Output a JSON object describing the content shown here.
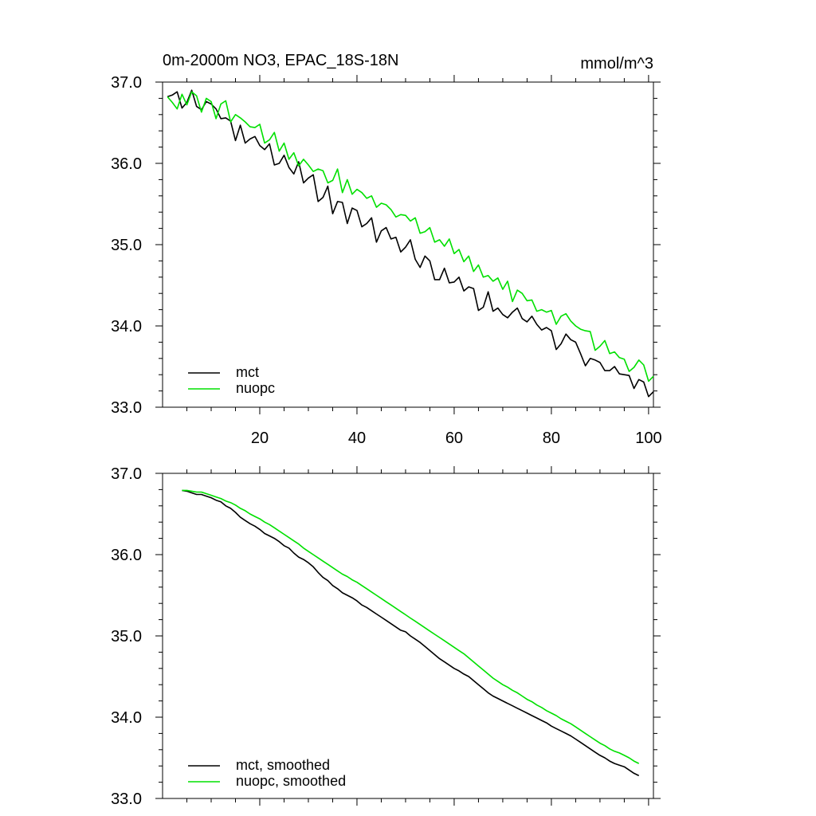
{
  "chart_data": [
    {
      "type": "line",
      "title": "0m-2000m NO3, EPAC_18S-18N",
      "units": "mmol/m^3",
      "xlabel": "",
      "ylabel": "",
      "xlim": [
        0,
        101
      ],
      "ylim": [
        33.0,
        37.0
      ],
      "xticks": [
        20,
        40,
        60,
        80,
        100
      ],
      "xtick_labels": [
        "20",
        "40",
        "60",
        "80",
        "100"
      ],
      "yticks": [
        33.0,
        34.0,
        35.0,
        36.0,
        37.0
      ],
      "ytick_labels": [
        "33.0",
        "34.0",
        "35.0",
        "36.0",
        "37.0"
      ],
      "grid": false,
      "legend_position": "bottom-left",
      "x": [
        1,
        2,
        3,
        4,
        5,
        6,
        7,
        8,
        9,
        10,
        11,
        12,
        13,
        14,
        15,
        16,
        17,
        18,
        19,
        20,
        21,
        22,
        23,
        24,
        25,
        26,
        27,
        28,
        29,
        30,
        31,
        32,
        33,
        34,
        35,
        36,
        37,
        38,
        39,
        40,
        41,
        42,
        43,
        44,
        45,
        46,
        47,
        48,
        49,
        50,
        51,
        52,
        53,
        54,
        55,
        56,
        57,
        58,
        59,
        60,
        61,
        62,
        63,
        64,
        65,
        66,
        67,
        68,
        69,
        70,
        71,
        72,
        73,
        74,
        75,
        76,
        77,
        78,
        79,
        80,
        81,
        82,
        83,
        84,
        85,
        86,
        87,
        88,
        89,
        90,
        91,
        92,
        93,
        94,
        95,
        96,
        97,
        98,
        99,
        100,
        101
      ],
      "series": [
        {
          "name": "mct",
          "color": "#000000",
          "values": [
            36.82,
            36.84,
            36.88,
            36.68,
            36.75,
            36.9,
            36.7,
            36.66,
            36.76,
            36.73,
            36.67,
            36.55,
            36.56,
            36.52,
            36.28,
            36.47,
            36.25,
            36.3,
            36.33,
            36.22,
            36.17,
            36.24,
            35.98,
            36.0,
            36.1,
            35.95,
            35.87,
            36.02,
            35.76,
            35.82,
            35.86,
            35.53,
            35.58,
            35.72,
            35.38,
            35.53,
            35.52,
            35.26,
            35.45,
            35.42,
            35.22,
            35.26,
            35.33,
            35.03,
            35.17,
            35.21,
            35.07,
            35.09,
            34.91,
            34.97,
            35.06,
            34.82,
            34.72,
            34.86,
            34.8,
            34.57,
            34.57,
            34.71,
            34.53,
            34.54,
            34.6,
            34.43,
            34.48,
            34.46,
            34.19,
            34.23,
            34.42,
            34.18,
            34.22,
            34.14,
            34.1,
            34.17,
            34.22,
            34.09,
            34.05,
            34.12,
            34.02,
            33.95,
            33.98,
            33.94,
            33.71,
            33.78,
            33.9,
            33.83,
            33.8,
            33.66,
            33.51,
            33.6,
            33.58,
            33.55,
            33.45,
            33.45,
            33.5,
            33.41,
            33.4,
            33.39,
            33.23,
            33.34,
            33.31,
            33.13,
            33.19
          ]
        },
        {
          "name": "nuopc",
          "color": "#00e000",
          "values": [
            36.82,
            36.75,
            36.67,
            36.85,
            36.72,
            36.88,
            36.83,
            36.63,
            36.8,
            36.76,
            36.55,
            36.73,
            36.77,
            36.51,
            36.6,
            36.56,
            36.51,
            36.45,
            36.44,
            36.48,
            36.25,
            36.29,
            36.38,
            36.15,
            36.25,
            36.05,
            36.13,
            35.97,
            36.05,
            35.98,
            35.9,
            35.93,
            35.91,
            35.76,
            35.79,
            35.93,
            35.64,
            35.8,
            35.62,
            35.68,
            35.64,
            35.57,
            35.6,
            35.46,
            35.51,
            35.49,
            35.43,
            35.34,
            35.37,
            35.36,
            35.29,
            35.33,
            35.14,
            35.16,
            35.21,
            35.03,
            35.06,
            34.98,
            35.07,
            34.89,
            34.94,
            34.79,
            34.86,
            34.67,
            34.75,
            34.6,
            34.62,
            34.55,
            34.59,
            34.45,
            34.55,
            34.3,
            34.44,
            34.4,
            34.31,
            34.32,
            34.18,
            34.2,
            34.17,
            34.19,
            34.02,
            34.12,
            34.15,
            34.06,
            34.0,
            33.96,
            33.94,
            33.93,
            33.7,
            33.75,
            33.82,
            33.66,
            33.68,
            33.61,
            33.59,
            33.44,
            33.49,
            33.58,
            33.52,
            33.32,
            33.38
          ]
        }
      ]
    },
    {
      "type": "line",
      "title": "",
      "xlabel": "",
      "ylabel": "",
      "xlim": [
        0,
        101
      ],
      "ylim": [
        33.0,
        37.0
      ],
      "xticks": [
        20,
        40,
        60,
        80,
        100
      ],
      "yticks": [
        33.0,
        34.0,
        35.0,
        36.0,
        37.0
      ],
      "ytick_labels": [
        "33.0",
        "34.0",
        "35.0",
        "36.0",
        "37.0"
      ],
      "grid": false,
      "legend_position": "bottom-left",
      "x": [
        4,
        5,
        6,
        7,
        8,
        9,
        10,
        11,
        12,
        13,
        14,
        15,
        16,
        17,
        18,
        19,
        20,
        21,
        22,
        23,
        24,
        25,
        26,
        27,
        28,
        29,
        30,
        31,
        32,
        33,
        34,
        35,
        36,
        37,
        38,
        39,
        40,
        41,
        42,
        43,
        44,
        45,
        46,
        47,
        48,
        49,
        50,
        51,
        52,
        53,
        54,
        55,
        56,
        57,
        58,
        59,
        60,
        61,
        62,
        63,
        64,
        65,
        66,
        67,
        68,
        69,
        70,
        71,
        72,
        73,
        74,
        75,
        76,
        77,
        78,
        79,
        80,
        81,
        82,
        83,
        84,
        85,
        86,
        87,
        88,
        89,
        90,
        91,
        92,
        93,
        94,
        95,
        96,
        97,
        98
      ],
      "series": [
        {
          "name": "mct, smoothed",
          "color": "#000000",
          "values": [
            36.79,
            36.78,
            36.76,
            36.74,
            36.74,
            36.72,
            36.7,
            36.67,
            36.65,
            36.6,
            36.57,
            36.52,
            36.46,
            36.42,
            36.38,
            36.35,
            36.31,
            36.26,
            36.23,
            36.2,
            36.16,
            36.11,
            36.08,
            36.02,
            35.97,
            35.94,
            35.9,
            35.85,
            35.78,
            35.72,
            35.68,
            35.62,
            35.58,
            35.53,
            35.5,
            35.47,
            35.43,
            35.38,
            35.35,
            35.31,
            35.27,
            35.23,
            35.19,
            35.15,
            35.11,
            35.07,
            35.05,
            35.0,
            34.96,
            34.92,
            34.87,
            34.82,
            34.77,
            34.72,
            34.68,
            34.64,
            34.6,
            34.57,
            34.53,
            34.5,
            34.45,
            34.4,
            34.35,
            34.3,
            34.26,
            34.23,
            34.2,
            34.17,
            34.14,
            34.11,
            34.08,
            34.05,
            34.02,
            33.99,
            33.96,
            33.93,
            33.89,
            33.86,
            33.83,
            33.8,
            33.77,
            33.73,
            33.69,
            33.65,
            33.61,
            33.57,
            33.53,
            33.5,
            33.46,
            33.43,
            33.41,
            33.39,
            33.35,
            33.31,
            33.28
          ]
        },
        {
          "name": "nuopc, smoothed",
          "color": "#00e000",
          "values": [
            36.79,
            36.79,
            36.78,
            36.77,
            36.77,
            36.75,
            36.73,
            36.71,
            36.69,
            36.66,
            36.64,
            36.61,
            36.57,
            36.54,
            36.5,
            36.47,
            36.44,
            36.4,
            36.37,
            36.33,
            36.29,
            36.25,
            36.21,
            36.17,
            36.13,
            36.08,
            36.04,
            36.0,
            35.96,
            35.92,
            35.88,
            35.84,
            35.8,
            35.76,
            35.73,
            35.69,
            35.66,
            35.62,
            35.58,
            35.54,
            35.5,
            35.46,
            35.42,
            35.38,
            35.34,
            35.3,
            35.26,
            35.22,
            35.18,
            35.14,
            35.1,
            35.06,
            35.02,
            34.98,
            34.94,
            34.9,
            34.86,
            34.82,
            34.78,
            34.73,
            34.68,
            34.63,
            34.58,
            34.53,
            34.48,
            34.44,
            34.4,
            34.37,
            34.33,
            34.3,
            34.26,
            34.22,
            34.19,
            34.15,
            34.12,
            34.08,
            34.05,
            34.02,
            33.98,
            33.95,
            33.92,
            33.88,
            33.84,
            33.8,
            33.76,
            33.72,
            33.68,
            33.65,
            33.61,
            33.58,
            33.56,
            33.53,
            33.5,
            33.46,
            33.43
          ]
        }
      ]
    }
  ]
}
